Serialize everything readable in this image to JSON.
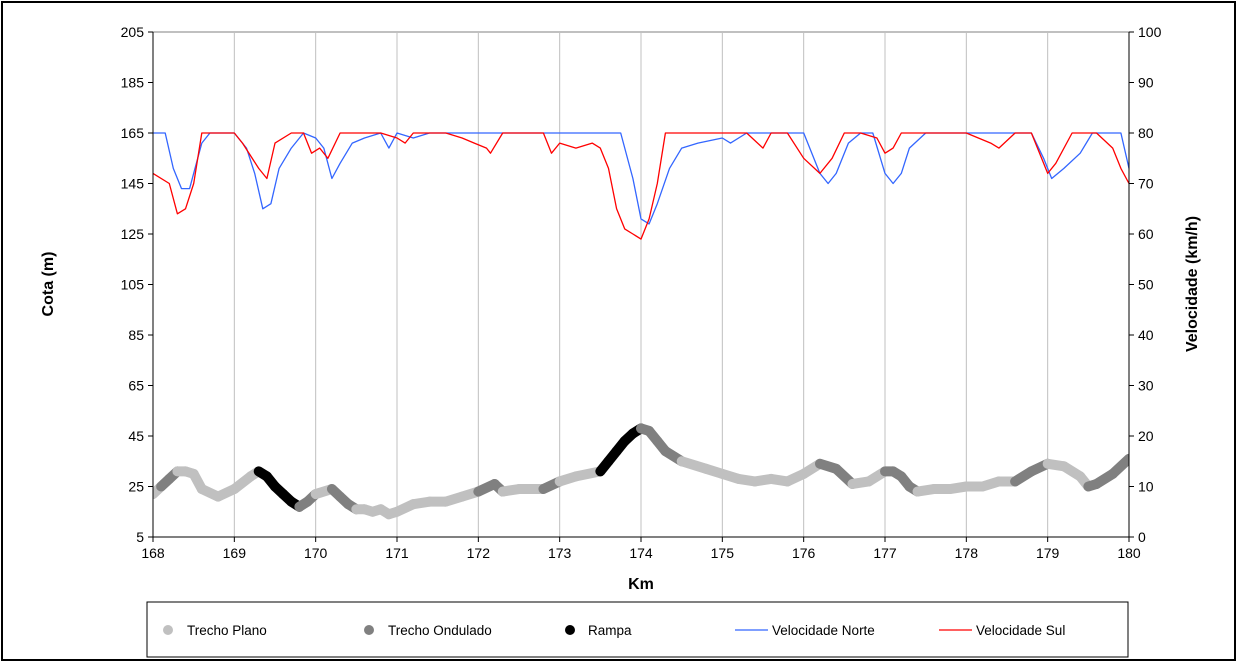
{
  "chart_data": {
    "type": "line",
    "title": "",
    "xlabel": "Km",
    "ylabel_left": "Cota (m)",
    "ylabel_right": "Velocidade (km/h)",
    "xlim": [
      168,
      180
    ],
    "ylim_left": [
      5,
      205
    ],
    "ylim_right": [
      0,
      100
    ],
    "x_ticks": [
      "168",
      "169",
      "170",
      "171",
      "172",
      "173",
      "174",
      "175",
      "176",
      "177",
      "178",
      "179",
      "180"
    ],
    "y_left_ticks": [
      "5",
      "25",
      "45",
      "65",
      "85",
      "105",
      "125",
      "145",
      "165",
      "185",
      "205"
    ],
    "y_right_ticks": [
      "0",
      "10",
      "20",
      "30",
      "40",
      "50",
      "60",
      "70",
      "80",
      "90",
      "100"
    ],
    "grid": "vertical",
    "legend_position": "bottom",
    "legend": [
      "Trecho Plano",
      "Trecho Ondulado",
      "Rampa",
      "Velocidade Norte",
      "Velocidade Sul"
    ],
    "colors": {
      "plano": "#c0c0c0",
      "ondulado": "#808080",
      "rampa": "#000000",
      "norte": "#3366ff",
      "sul": "#ff0000"
    },
    "elevation": {
      "x": [
        168.0,
        168.1,
        168.2,
        168.3,
        168.4,
        168.5,
        168.6,
        168.8,
        169.0,
        169.2,
        169.3,
        169.4,
        169.5,
        169.6,
        169.7,
        169.8,
        169.9,
        170.0,
        170.2,
        170.3,
        170.4,
        170.5,
        170.6,
        170.7,
        170.8,
        170.9,
        171.0,
        171.2,
        171.4,
        171.6,
        171.8,
        172.0,
        172.2,
        172.3,
        172.5,
        172.8,
        173.0,
        173.2,
        173.5,
        173.6,
        173.7,
        173.8,
        173.9,
        174.0,
        174.1,
        174.2,
        174.3,
        174.5,
        174.8,
        175.0,
        175.2,
        175.4,
        175.6,
        175.8,
        176.0,
        176.2,
        176.4,
        176.6,
        176.8,
        177.0,
        177.1,
        177.2,
        177.3,
        177.4,
        177.6,
        177.8,
        178.0,
        178.2,
        178.4,
        178.6,
        178.8,
        179.0,
        179.2,
        179.4,
        179.5,
        179.6,
        179.8,
        180.0
      ],
      "y": [
        22,
        25,
        28,
        31,
        31,
        30,
        24,
        21,
        24,
        29,
        31,
        29,
        25,
        22,
        19,
        17,
        19,
        22,
        24,
        21,
        18,
        16,
        16,
        15,
        16,
        14,
        15,
        18,
        19,
        19,
        21,
        23,
        26,
        23,
        24,
        24,
        27,
        29,
        31,
        35,
        39,
        43,
        46,
        48,
        47,
        43,
        39,
        35,
        32,
        30,
        28,
        27,
        28,
        27,
        30,
        34,
        32,
        26,
        27,
        31,
        31,
        29,
        25,
        23,
        24,
        24,
        25,
        25,
        27,
        27,
        31,
        34,
        33,
        29,
        25,
        26,
        30,
        36
      ],
      "segment": [
        "plano",
        "ondulado",
        "ondulado",
        "plano",
        "plano",
        "plano",
        "plano",
        "plano",
        "plano",
        "plano",
        "rampa",
        "rampa",
        "rampa",
        "rampa",
        "rampa",
        "ondulado",
        "ondulado",
        "plano",
        "ondulado",
        "ondulado",
        "ondulado",
        "plano",
        "plano",
        "plano",
        "plano",
        "plano",
        "plano",
        "plano",
        "plano",
        "plano",
        "plano",
        "ondulado",
        "ondulado",
        "plano",
        "plano",
        "ondulado",
        "plano",
        "plano",
        "rampa",
        "rampa",
        "rampa",
        "rampa",
        "rampa",
        "ondulado",
        "ondulado",
        "ondulado",
        "ondulado",
        "plano",
        "plano",
        "plano",
        "plano",
        "plano",
        "plano",
        "plano",
        "plano",
        "ondulado",
        "ondulado",
        "plano",
        "plano",
        "ondulado",
        "ondulado",
        "ondulado",
        "ondulado",
        "plano",
        "plano",
        "plano",
        "plano",
        "plano",
        "plano",
        "ondulado",
        "ondulado",
        "plano",
        "plano",
        "plano",
        "ondulado",
        "ondulado",
        "ondulado",
        "ondulado"
      ]
    },
    "series": [
      {
        "name": "Velocidade Norte",
        "x": [
          168.0,
          168.15,
          168.25,
          168.35,
          168.45,
          168.6,
          168.7,
          169.0,
          169.15,
          169.25,
          169.35,
          169.45,
          169.55,
          169.7,
          169.85,
          170.0,
          170.1,
          170.2,
          170.3,
          170.45,
          170.6,
          170.8,
          170.9,
          171.0,
          171.2,
          171.4,
          171.6,
          171.8,
          172.0,
          172.2,
          172.3,
          172.5,
          172.8,
          173.0,
          173.3,
          173.6,
          173.75,
          173.9,
          174.0,
          174.1,
          174.2,
          174.35,
          174.5,
          174.7,
          175.0,
          175.1,
          175.3,
          175.5,
          175.6,
          175.8,
          176.0,
          176.2,
          176.3,
          176.4,
          176.55,
          176.7,
          176.85,
          177.0,
          177.1,
          177.2,
          177.3,
          177.5,
          177.8,
          178.0,
          178.3,
          178.6,
          178.8,
          178.95,
          179.05,
          179.2,
          179.4,
          179.55,
          179.7,
          179.9,
          180.0
        ],
        "y": [
          80,
          80,
          73,
          69,
          69,
          78,
          80,
          80,
          77,
          72,
          65,
          66,
          73,
          77,
          80,
          79,
          77,
          71,
          74,
          78,
          79,
          80,
          77,
          80,
          79,
          80,
          80,
          80,
          80,
          80,
          80,
          80,
          80,
          80,
          80,
          80,
          80,
          71,
          63,
          62,
          66,
          73,
          77,
          78,
          79,
          78,
          80,
          80,
          80,
          80,
          80,
          72,
          70,
          72,
          78,
          80,
          80,
          72,
          70,
          72,
          77,
          80,
          80,
          80,
          80,
          80,
          80,
          75,
          71,
          73,
          76,
          80,
          80,
          80,
          73
        ]
      },
      {
        "name": "Velocidade Sul",
        "x": [
          168.0,
          168.2,
          168.3,
          168.4,
          168.5,
          168.6,
          168.8,
          169.0,
          169.1,
          169.3,
          169.4,
          169.5,
          169.7,
          169.85,
          169.95,
          170.05,
          170.15,
          170.3,
          170.5,
          170.8,
          171.0,
          171.1,
          171.2,
          171.4,
          171.6,
          171.8,
          171.95,
          172.1,
          172.15,
          172.3,
          172.5,
          172.8,
          172.9,
          173.0,
          173.2,
          173.4,
          173.5,
          173.6,
          173.7,
          173.8,
          173.9,
          174.0,
          174.1,
          174.2,
          174.3,
          174.5,
          175.0,
          175.3,
          175.5,
          175.6,
          175.8,
          176.0,
          176.2,
          176.35,
          176.5,
          176.7,
          176.9,
          177.0,
          177.1,
          177.2,
          177.5,
          177.8,
          178.0,
          178.3,
          178.4,
          178.6,
          178.8,
          179.0,
          179.1,
          179.3,
          179.5,
          179.6,
          179.8,
          179.9,
          180.0
        ],
        "y": [
          72,
          70,
          64,
          65,
          70,
          80,
          80,
          80,
          78,
          73,
          71,
          78,
          80,
          80,
          76,
          77,
          75,
          80,
          80,
          80,
          79,
          78,
          80,
          80,
          80,
          79,
          78,
          77,
          76,
          80,
          80,
          80,
          76,
          78,
          77,
          78,
          77,
          73,
          65,
          61,
          60,
          59,
          63,
          70,
          80,
          80,
          80,
          80,
          77,
          80,
          80,
          75,
          72,
          75,
          80,
          80,
          79,
          76,
          77,
          80,
          80,
          80,
          80,
          78,
          77,
          80,
          80,
          72,
          74,
          80,
          80,
          80,
          77,
          73,
          70
        ]
      }
    ]
  }
}
